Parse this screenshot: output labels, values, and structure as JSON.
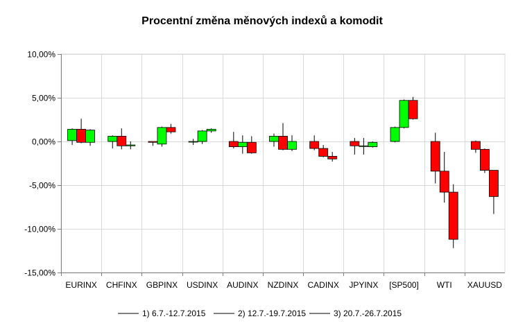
{
  "chart_data": {
    "type": "candlestick",
    "title": "Procentní změna měnových indexů a komodit",
    "y_tick_labels": [
      "10,00%",
      "5,00%",
      "0,00%",
      "-5,00%",
      "-10,00%",
      "-15,00%"
    ],
    "y_ticks": [
      10,
      5,
      0,
      -5,
      -10,
      -15
    ],
    "ylim": [
      -15,
      10
    ],
    "grid": true,
    "legend_position": "bottom",
    "colors": {
      "up": "#00ff00",
      "down": "#ff0000",
      "wick": "#000000",
      "grid": "#d9d9d9",
      "axis": "#808080"
    },
    "categories": [
      "EURINX",
      "CHFINX",
      "GBPINX",
      "USDINX",
      "AUDINX",
      "NZDINX",
      "CADINX",
      "JPYINX",
      "[SP500]",
      "WTI",
      "XAUUSD"
    ],
    "series": [
      {
        "name": "1) 6.7.-12.7.2015"
      },
      {
        "name": "2) 12.7.-19.7.2015"
      },
      {
        "name": "3) 20.7.-26.7.2015"
      }
    ],
    "candles": [
      [
        {
          "open": 0.1,
          "close": 1.4,
          "high": 1.5,
          "low": -0.4
        },
        {
          "open": 1.4,
          "close": -0.1,
          "high": 2.6,
          "low": -0.2
        },
        {
          "open": -0.1,
          "close": 1.3,
          "high": 1.4,
          "low": -0.5
        }
      ],
      [
        {
          "open": 0.0,
          "close": 0.6,
          "high": 0.7,
          "low": -0.8
        },
        {
          "open": 0.6,
          "close": -0.5,
          "high": 1.5,
          "low": -0.9
        },
        {
          "open": -0.5,
          "close": -0.4,
          "high": 0.0,
          "low": -0.9
        }
      ],
      [
        {
          "open": 0.0,
          "close": -0.1,
          "high": 0.0,
          "low": -0.5
        },
        {
          "open": -0.3,
          "close": 1.6,
          "high": 1.7,
          "low": -0.6
        },
        {
          "open": 1.6,
          "close": 1.1,
          "high": 2.0,
          "low": 0.9
        }
      ],
      [
        {
          "open": 0.0,
          "close": 0.0,
          "high": 0.3,
          "low": -0.4
        },
        {
          "open": 0.0,
          "close": 1.2,
          "high": 1.3,
          "low": -0.3
        },
        {
          "open": 1.2,
          "close": 1.4,
          "high": 1.5,
          "low": 1.0
        }
      ],
      [
        {
          "open": 0.0,
          "close": -0.6,
          "high": 1.1,
          "low": -0.8
        },
        {
          "open": -0.6,
          "close": -0.1,
          "high": 0.7,
          "low": -1.4
        },
        {
          "open": -0.1,
          "close": -1.3,
          "high": 0.6,
          "low": -1.4
        }
      ],
      [
        {
          "open": 0.0,
          "close": 0.6,
          "high": 0.9,
          "low": -0.6
        },
        {
          "open": 0.6,
          "close": -0.9,
          "high": 2.1,
          "low": -1.0
        },
        {
          "open": -0.9,
          "close": 0.0,
          "high": 0.7,
          "low": -1.1
        }
      ],
      [
        {
          "open": 0.0,
          "close": -0.8,
          "high": 0.7,
          "low": -1.0
        },
        {
          "open": -0.8,
          "close": -1.7,
          "high": -0.4,
          "low": -1.8
        },
        {
          "open": -1.7,
          "close": -2.0,
          "high": -1.2,
          "low": -2.3
        }
      ],
      [
        {
          "open": 0.0,
          "close": -0.5,
          "high": 0.4,
          "low": -1.5
        },
        {
          "open": -0.5,
          "close": -0.5,
          "high": 0.4,
          "low": -1.5
        },
        {
          "open": -0.6,
          "close": -0.1,
          "high": 0.0,
          "low": -0.7
        }
      ],
      [
        {
          "open": 0.0,
          "close": 1.6,
          "high": 1.7,
          "low": -0.1
        },
        {
          "open": 1.6,
          "close": 4.7,
          "high": 4.8,
          "low": 1.5
        },
        {
          "open": 4.7,
          "close": 2.6,
          "high": 5.1,
          "low": 2.5
        }
      ],
      [
        {
          "open": 0.0,
          "close": -3.4,
          "high": 1.0,
          "low": -4.8
        },
        {
          "open": -3.4,
          "close": -5.8,
          "high": -1.2,
          "low": -7.0
        },
        {
          "open": -5.8,
          "close": -11.2,
          "high": -4.9,
          "low": -12.2
        }
      ],
      [
        {
          "open": 0.0,
          "close": -0.9,
          "high": 0.1,
          "low": -1.3
        },
        {
          "open": -0.9,
          "close": -3.3,
          "high": -0.8,
          "low": -3.6
        },
        {
          "open": -3.3,
          "close": -6.3,
          "high": -3.3,
          "low": -8.3
        }
      ]
    ]
  }
}
